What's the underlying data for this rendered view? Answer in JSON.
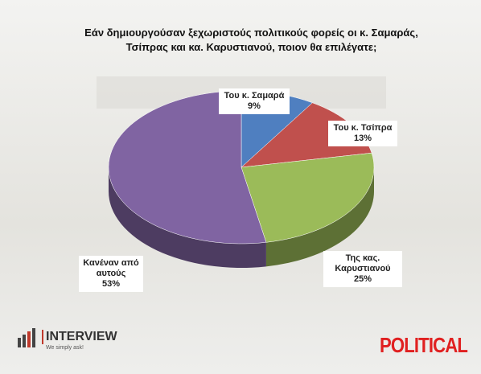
{
  "chart_data": {
    "type": "pie3d",
    "title": "Εάν δημιουργούσαν ξεχωριστούς πολιτικούς φορείς οι κ. Σαμαράς, Τσίπρας και κα. Καρυστιανού, ποιον θα επιλέγατε;",
    "categories": [
      "Του κ. Σαμαρά",
      "Του κ. Τσίπρα",
      "Της κας. Καρυστιανού",
      "Κανέναν από αυτούς"
    ],
    "values": [
      9,
      13,
      25,
      53
    ],
    "value_labels": [
      "9%",
      "13%",
      "25%",
      "53%"
    ],
    "colors": [
      "#4f7fc0",
      "#c0504d",
      "#9bbb59",
      "#8064a2"
    ]
  },
  "logos": {
    "left": "INTERVIEW",
    "left_tagline": "We simply ask!",
    "right": "POLITICAL"
  }
}
